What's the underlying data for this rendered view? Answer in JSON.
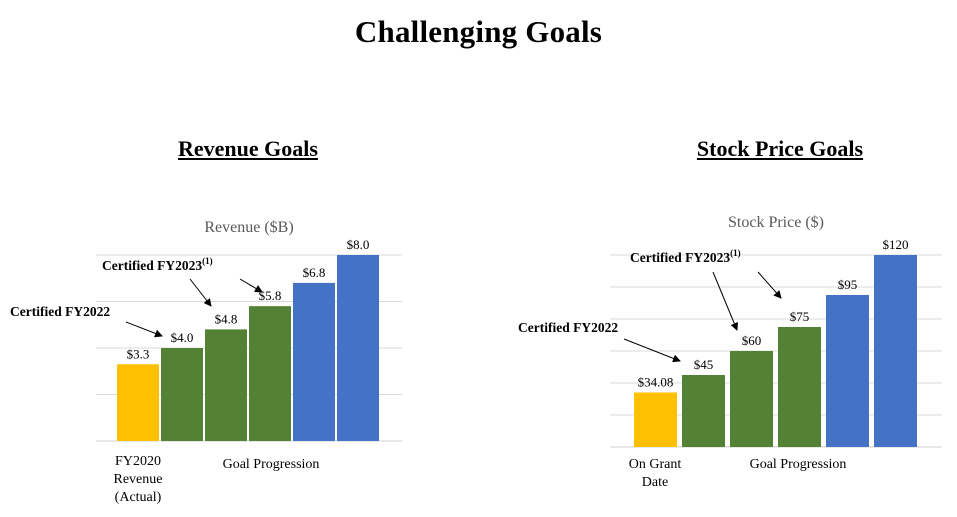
{
  "title": "Challenging Goals",
  "panels": {
    "revenue": {
      "heading": "Revenue Goals"
    },
    "stock": {
      "heading": "Stock Price Goals"
    }
  },
  "colors": {
    "baseline": "#FFC000",
    "green": "#548235",
    "blue": "#4472C4",
    "grid": "#D9D9D9"
  },
  "chart_data": [
    {
      "type": "bar",
      "title": "Revenue ($B)",
      "ylim": [
        0,
        8.0
      ],
      "grid": true,
      "bars": [
        {
          "value": 3.3,
          "label": "$3.3",
          "color": "#FFC000"
        },
        {
          "value": 4.0,
          "label": "$4.0",
          "color": "#548235"
        },
        {
          "value": 4.8,
          "label": "$4.8",
          "color": "#548235"
        },
        {
          "value": 5.8,
          "label": "$5.8",
          "color": "#548235"
        },
        {
          "value": 6.8,
          "label": "$6.8",
          "color": "#4472C4"
        },
        {
          "value": 8.0,
          "label": "$8.0",
          "color": "#4472C4"
        }
      ],
      "category_labels": [
        {
          "lines": [
            "FY2020",
            "Revenue",
            "(Actual)"
          ]
        },
        {
          "lines": [
            "Goal Progression"
          ]
        }
      ],
      "annotations": [
        {
          "text": "Certified FY2022",
          "superscript": "",
          "target_bar": 1
        },
        {
          "text": "Certified FY2023",
          "superscript": "(1)",
          "target_bars": [
            2,
            3
          ]
        }
      ]
    },
    {
      "type": "bar",
      "title": "Stock Price ($)",
      "ylim": [
        0,
        120
      ],
      "grid": true,
      "bars": [
        {
          "value": 34.08,
          "label": "$34.08",
          "color": "#FFC000"
        },
        {
          "value": 45,
          "label": "$45",
          "color": "#548235"
        },
        {
          "value": 60,
          "label": "$60",
          "color": "#548235"
        },
        {
          "value": 75,
          "label": "$75",
          "color": "#548235"
        },
        {
          "value": 95,
          "label": "$95",
          "color": "#4472C4"
        },
        {
          "value": 120,
          "label": "$120",
          "color": "#4472C4"
        }
      ],
      "category_labels": [
        {
          "lines": [
            "On Grant",
            "Date"
          ]
        },
        {
          "lines": [
            "Goal Progression"
          ]
        }
      ],
      "annotations": [
        {
          "text": "Certified FY2022",
          "superscript": "",
          "target_bar": 1
        },
        {
          "text": "Certified FY2023",
          "superscript": "(1)",
          "target_bars": [
            2,
            3
          ]
        }
      ]
    }
  ]
}
